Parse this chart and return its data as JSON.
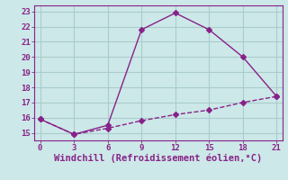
{
  "xlabel": "Windchill (Refroidissement éolien,°C)",
  "line1_x": [
    0,
    3,
    6,
    9,
    12,
    15,
    18,
    21
  ],
  "line1_y": [
    15.9,
    14.9,
    15.5,
    21.8,
    22.9,
    21.8,
    20.0,
    17.4
  ],
  "line2_x": [
    0,
    3,
    6,
    9,
    12,
    15,
    18,
    21
  ],
  "line2_y": [
    15.9,
    14.9,
    15.3,
    15.8,
    16.2,
    16.5,
    17.0,
    17.4
  ],
  "line_color": "#882288",
  "bg_color": "#cce8e8",
  "grid_color": "#aacccc",
  "xlim": [
    -0.5,
    21.5
  ],
  "ylim": [
    14.5,
    23.4
  ],
  "xticks": [
    0,
    3,
    6,
    9,
    12,
    15,
    18,
    21
  ],
  "yticks": [
    15,
    16,
    17,
    18,
    19,
    20,
    21,
    22,
    23
  ],
  "marker": "D",
  "markersize": 3,
  "linewidth": 1.0,
  "tick_fontsize": 6.5,
  "label_fontsize": 7.5
}
